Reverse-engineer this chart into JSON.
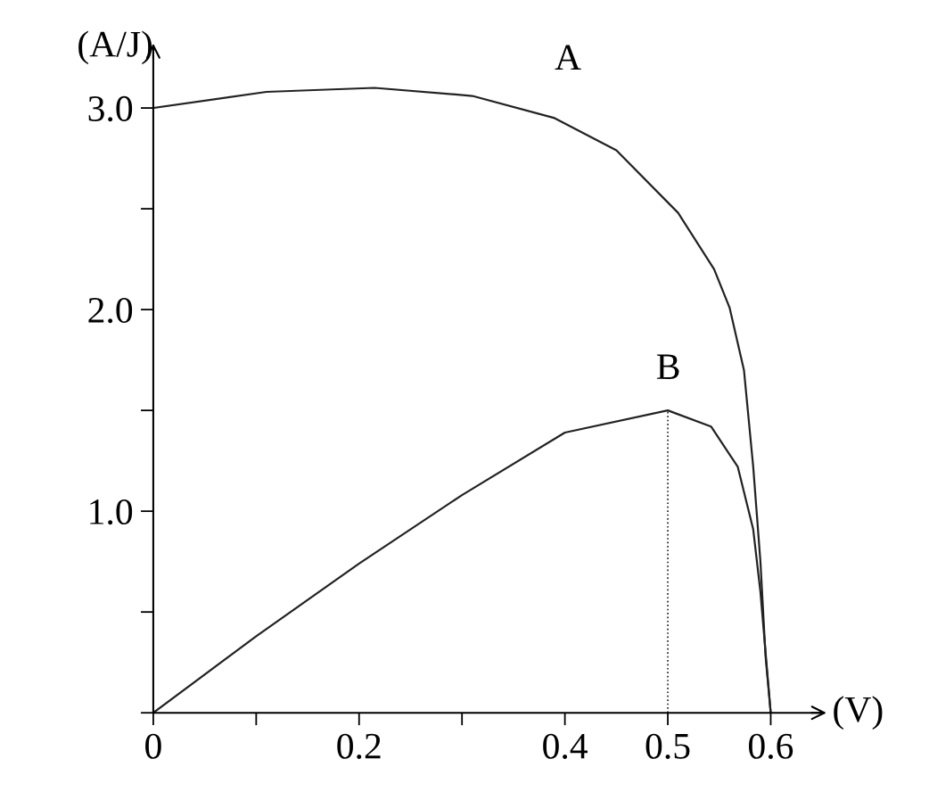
{
  "chart_data": {
    "type": "line",
    "xlabel": "(V)",
    "ylabel": "(A/J)",
    "xlim": [
      0,
      0.65
    ],
    "ylim": [
      0,
      3.3
    ],
    "xticks": [
      {
        "value": 0,
        "label": "0"
      },
      {
        "value": 0.1,
        "label": null
      },
      0.2,
      {
        "value": 0.3,
        "label": null
      },
      0.4,
      0.5,
      0.6
    ],
    "yticks": [
      {
        "value": 0,
        "label": null
      },
      {
        "value": 0.5,
        "label": null
      },
      {
        "value": 1.0,
        "label": "1.0"
      },
      {
        "value": 1.5,
        "label": null
      },
      {
        "value": 2.0,
        "label": "2.0"
      },
      {
        "value": 2.5,
        "label": null
      },
      {
        "value": 3.0,
        "label": "3.0"
      }
    ],
    "series": [
      {
        "color": "#222222",
        "x": [
          0,
          0.11,
          0.215,
          0.31,
          0.39,
          0.45,
          0.51,
          0.545,
          0.56,
          0.574,
          0.583,
          0.59,
          0.595,
          0.6
        ],
        "values": [
          3.0,
          3.08,
          3.1,
          3.06,
          2.95,
          2.79,
          2.48,
          2.2,
          2.01,
          1.7,
          1.22,
          0.75,
          0.28,
          0
        ]
      },
      {
        "color": "#222222",
        "x": [
          0,
          0.1,
          0.2,
          0.3,
          0.4,
          0.5,
          0.542,
          0.568,
          0.583,
          0.59,
          0.6
        ],
        "values": [
          0,
          0.38,
          0.74,
          1.08,
          1.39,
          1.5,
          1.42,
          1.22,
          0.91,
          0.6,
          0
        ]
      }
    ],
    "annotations": [
      "A",
      "B"
    ],
    "ref_lines": [
      {
        "axis": "x",
        "value": 0.5,
        "line_style": "dotted",
        "color": "#222222"
      }
    ],
    "grid": false,
    "legend": false,
    "marker": "none",
    "line_style": "solid"
  }
}
